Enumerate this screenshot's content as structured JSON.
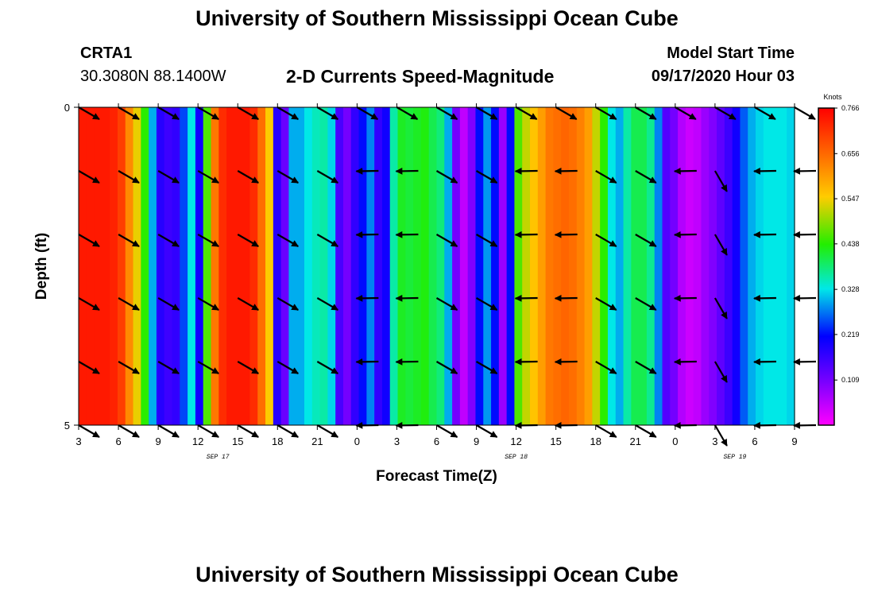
{
  "page": {
    "title_top": "University of Southern Mississippi Ocean Cube",
    "title_bottom": "University of Southern Mississippi Ocean Cube",
    "station": "CRTA1",
    "location": "30.3080N 88.1400W",
    "model_start_label": "Model Start Time",
    "model_start_value": "09/17/2020 Hour 03"
  },
  "chart_data": {
    "type": "heatmap",
    "title": "2-D Currents Speed-Magnitude",
    "xlabel": "Forecast Time(Z)",
    "ylabel": "Depth (ft)",
    "units_label": "Knots",
    "x_tick_labels": [
      "3",
      "6",
      "9",
      "12",
      "15",
      "18",
      "21",
      "0",
      "3",
      "6",
      "9",
      "12",
      "15",
      "18",
      "21",
      "0",
      "3",
      "6",
      "9"
    ],
    "x_hours_range": [
      0,
      54
    ],
    "date_labels": [
      {
        "hour": 10.5,
        "label": "SEP 17"
      },
      {
        "hour": 33,
        "label": "SEP 18"
      },
      {
        "hour": 49.5,
        "label": "SEP 19"
      }
    ],
    "y_ticks": [
      0,
      5
    ],
    "ylim": [
      0,
      5
    ],
    "y_inverted": true,
    "colorbar": {
      "min": 0.0,
      "max": 0.766,
      "tick_values": [
        0.766,
        0.656,
        0.547,
        0.438,
        0.328,
        0.219,
        0.109
      ],
      "tick_labels": [
        "0.766",
        "0.656",
        "0.547",
        "0.438",
        "0.328",
        "0.219",
        "0.109"
      ]
    },
    "speed_by_hour_knots": [
      0.74,
      0.74,
      0.74,
      0.74,
      0.73,
      0.7,
      0.62,
      0.54,
      0.44,
      0.3,
      0.18,
      0.16,
      0.17,
      0.25,
      0.33,
      0.2,
      0.46,
      0.64,
      0.72,
      0.74,
      0.74,
      0.74,
      0.72,
      0.65,
      0.55,
      0.18,
      0.12,
      0.3,
      0.3,
      0.33,
      0.35,
      0.36,
      0.32,
      0.15,
      0.11,
      0.17,
      0.22,
      0.28,
      0.17,
      0.2,
      0.36,
      0.42,
      0.41,
      0.42,
      0.43,
      0.4,
      0.38,
      0.3,
      0.11,
      0.05,
      0.1,
      0.22,
      0.29,
      0.22,
      0.08,
      0.22,
      0.46,
      0.52,
      0.56,
      0.6,
      0.64,
      0.65,
      0.66,
      0.65,
      0.63,
      0.6,
      0.52,
      0.44,
      0.33,
      0.3,
      0.36,
      0.4,
      0.4,
      0.37,
      0.28,
      0.14,
      0.11,
      0.06,
      0.04,
      0.05,
      0.08,
      0.1,
      0.13,
      0.16,
      0.2,
      0.26,
      0.3,
      0.32,
      0.33,
      0.33,
      0.33,
      0.32
    ],
    "vectors": {
      "hours": [
        0,
        3,
        6,
        9,
        12,
        15,
        18,
        21,
        24,
        27,
        30,
        33,
        36,
        39,
        42,
        45,
        48,
        51,
        54
      ],
      "depths": [
        0,
        1,
        2,
        3,
        4,
        5
      ],
      "angles_deg": [
        [
          30,
          30,
          30,
          30,
          30,
          30,
          30,
          30,
          30,
          30,
          30,
          30,
          30,
          30,
          30,
          30,
          30,
          30,
          30
        ],
        [
          30,
          30,
          30,
          30,
          30,
          30,
          30,
          181,
          181,
          30,
          30,
          181,
          181,
          30,
          30,
          181,
          60,
          181,
          181
        ],
        [
          30,
          30,
          30,
          30,
          30,
          30,
          30,
          181,
          181,
          30,
          30,
          181,
          181,
          30,
          30,
          181,
          60,
          181,
          181
        ],
        [
          30,
          30,
          30,
          30,
          30,
          30,
          30,
          181,
          181,
          30,
          30,
          181,
          181,
          30,
          30,
          181,
          60,
          181,
          181
        ],
        [
          30,
          30,
          30,
          30,
          30,
          30,
          30,
          181,
          181,
          30,
          30,
          181,
          181,
          30,
          30,
          181,
          60,
          181,
          181
        ],
        [
          30,
          30,
          30,
          30,
          30,
          30,
          30,
          181,
          181,
          30,
          30,
          181,
          181,
          30,
          30,
          181,
          60,
          181,
          181
        ]
      ]
    }
  }
}
